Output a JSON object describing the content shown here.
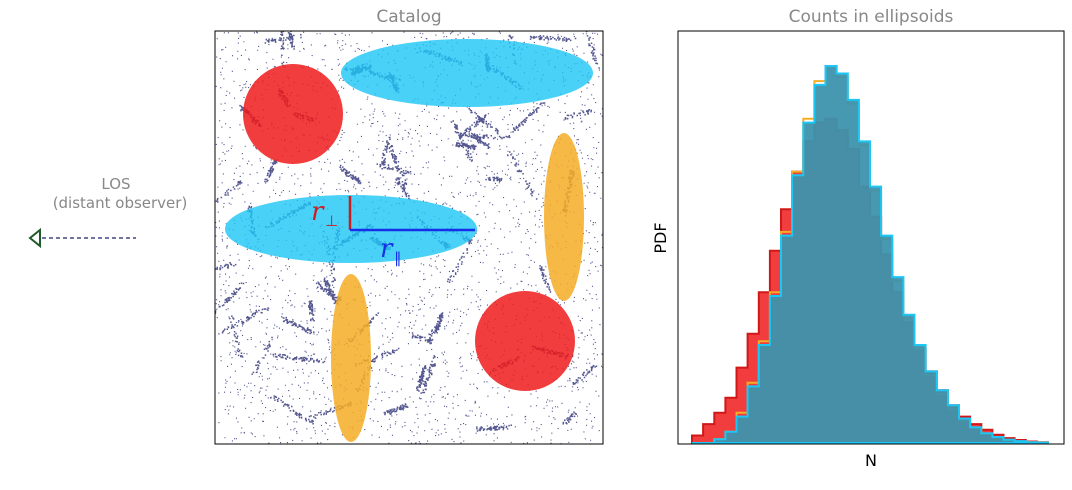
{
  "left_panel": {
    "title": "Catalog",
    "r_perp_symbol": "r",
    "r_perp_subscript": "⊥",
    "r_par_symbol": "r",
    "r_par_subscript": "∥"
  },
  "right_panel": {
    "title": "Counts in ellipsoids",
    "xlabel": "N",
    "ylabel": "PDF"
  },
  "los": {
    "label_line1": "LOS",
    "label_line2": "(distant observer)",
    "marker_icon": "triangle-left-icon"
  },
  "colors": {
    "sphere_red": "#ee1b1b",
    "ellipse_blue": "#1cc6f5",
    "ellipse_orange": "#f5ad25",
    "hist_teal": "#3d92ad",
    "points_navy": "#1b1f6b",
    "line_blue": "#1630e8",
    "line_red": "#cc1d1d",
    "los_marker": "#1f5a2a"
  },
  "chart_data": {
    "type": "area",
    "xlabel": "N",
    "ylabel": "PDF",
    "series": [
      {
        "name": "",
        "color": "#ee1b1b",
        "values": [
          0.02,
          0.05,
          0.08,
          0.12,
          0.2,
          0.29,
          0.4,
          0.51,
          0.62,
          0.72,
          0.8,
          0.85,
          0.86,
          0.83,
          0.78,
          0.68,
          0.6,
          0.5,
          0.4,
          0.32,
          0.25,
          0.19,
          0.14,
          0.1,
          0.07,
          0.05,
          0.035,
          0.022,
          0.013,
          0.008,
          0.004,
          0.002
        ]
      },
      {
        "name": "",
        "color": "#f5ad25",
        "values": [
          0.0,
          0.0,
          0.01,
          0.03,
          0.08,
          0.16,
          0.27,
          0.4,
          0.56,
          0.72,
          0.86,
          0.96,
          1.0,
          0.97,
          0.9,
          0.79,
          0.67,
          0.54,
          0.43,
          0.33,
          0.25,
          0.18,
          0.13,
          0.09,
          0.06,
          0.04,
          0.025,
          0.015,
          0.008,
          0.004,
          0.002,
          0.001
        ]
      },
      {
        "name": "",
        "color": "#1cc6f5",
        "values": [
          0.0,
          0.0,
          0.01,
          0.03,
          0.07,
          0.15,
          0.26,
          0.39,
          0.55,
          0.71,
          0.85,
          0.95,
          1.0,
          0.98,
          0.91,
          0.8,
          0.68,
          0.55,
          0.44,
          0.34,
          0.26,
          0.19,
          0.14,
          0.1,
          0.065,
          0.042,
          0.026,
          0.016,
          0.009,
          0.005,
          0.002,
          0.001
        ]
      }
    ]
  }
}
